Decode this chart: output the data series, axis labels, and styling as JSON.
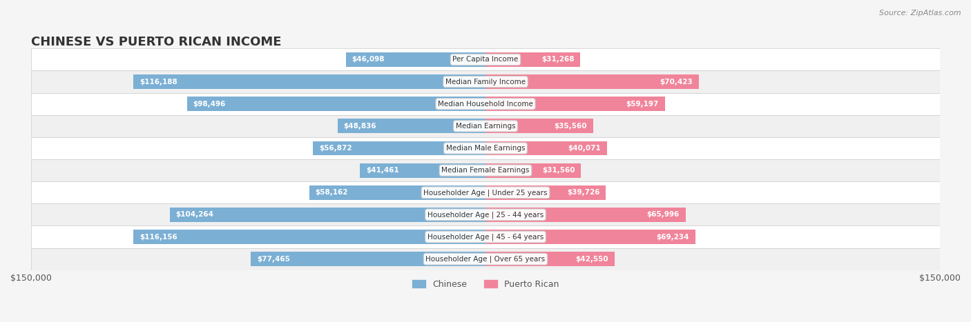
{
  "title": "CHINESE VS PUERTO RICAN INCOME",
  "source": "Source: ZipAtlas.com",
  "categories": [
    "Per Capita Income",
    "Median Family Income",
    "Median Household Income",
    "Median Earnings",
    "Median Male Earnings",
    "Median Female Earnings",
    "Householder Age | Under 25 years",
    "Householder Age | 25 - 44 years",
    "Householder Age | 45 - 64 years",
    "Householder Age | Over 65 years"
  ],
  "chinese_values": [
    46098,
    116188,
    98496,
    48836,
    56872,
    41461,
    58162,
    104264,
    116156,
    77465
  ],
  "puerto_rican_values": [
    31268,
    70423,
    59197,
    35560,
    40071,
    31560,
    39726,
    65996,
    69234,
    42550
  ],
  "chinese_labels": [
    "$46,098",
    "$116,188",
    "$98,496",
    "$48,836",
    "$56,872",
    "$41,461",
    "$58,162",
    "$104,264",
    "$116,156",
    "$77,465"
  ],
  "puerto_rican_labels": [
    "$31,268",
    "$70,423",
    "$59,197",
    "$35,560",
    "$40,071",
    "$31,560",
    "$39,726",
    "$65,996",
    "$69,234",
    "$42,550"
  ],
  "chinese_color": "#7BAFD4",
  "chinese_color_dark": "#5B9DC4",
  "puerto_rican_color": "#F0849A",
  "puerto_rican_color_dark": "#E06080",
  "max_value": 150000,
  "bg_color": "#f5f5f5",
  "row_bg_even": "#ffffff",
  "row_bg_odd": "#f0f0f0",
  "bar_height": 0.65,
  "legend_chinese": "Chinese",
  "legend_puerto_rican": "Puerto Rican"
}
